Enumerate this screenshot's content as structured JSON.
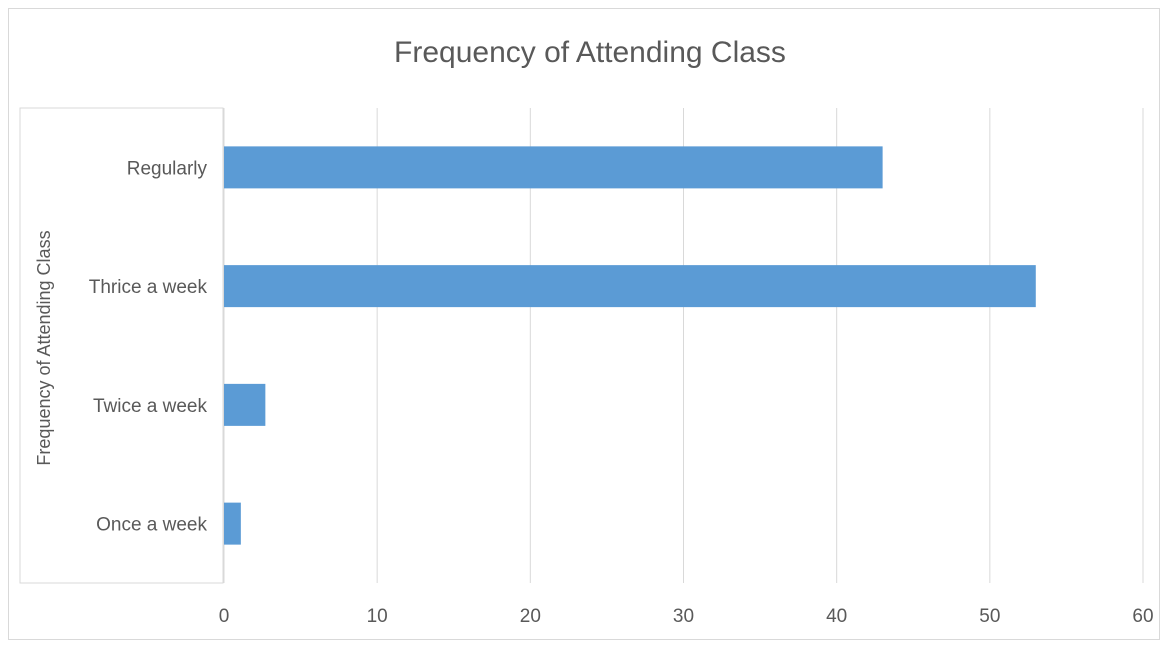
{
  "chart_data": {
    "type": "bar",
    "orientation": "horizontal",
    "title": "Frequency of Attending Class",
    "xlabel": "",
    "ylabel": "Frequency of Attending Class",
    "categories": [
      "Regularly",
      "Thrice a week",
      "Twice a week",
      "Once a week"
    ],
    "values": [
      43,
      53,
      2.7,
      1.1
    ],
    "xlim": [
      0,
      60
    ],
    "xticks": [
      "0",
      "10",
      "20",
      "30",
      "40",
      "50",
      "60"
    ],
    "grid": true,
    "legend": "none",
    "bar_color": "#5b9bd5"
  }
}
